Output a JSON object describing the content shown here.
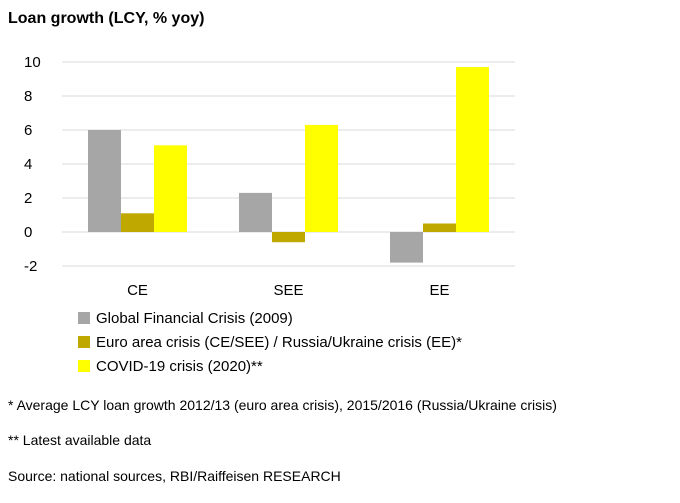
{
  "chart_data": {
    "type": "bar",
    "title": "Loan growth (LCY, % yoy)",
    "categories": [
      "CE",
      "SEE",
      "EE"
    ],
    "series": [
      {
        "name": "Global Financial Crisis (2009)",
        "color": "#a6a6a6",
        "values": [
          6.0,
          2.3,
          -1.8
        ]
      },
      {
        "name": "Euro area crisis (CE/SEE) / Russia/Ukraine crisis (EE)*",
        "color": "#bfa800",
        "values": [
          1.1,
          -0.6,
          0.5
        ]
      },
      {
        "name": "COVID-19 crisis (2020)**",
        "color": "#ffff00",
        "values": [
          5.1,
          6.3,
          9.7
        ]
      }
    ],
    "ylim": [
      -2,
      10
    ],
    "yticks": [
      -2,
      0,
      2,
      4,
      6,
      8,
      10
    ],
    "grid": true,
    "legend_position": "bottom-left"
  },
  "footnotes": {
    "note1": "* Average LCY loan growth 2012/13 (euro area crisis), 2015/2016 (Russia/Ukraine crisis)",
    "note2": "** Latest available data",
    "source": "Source: national sources, RBI/Raiffeisen RESEARCH"
  }
}
